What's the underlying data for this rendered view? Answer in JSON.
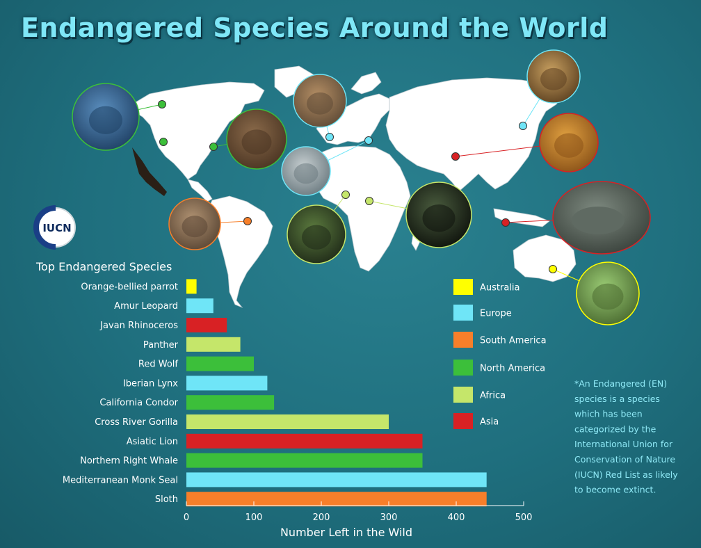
{
  "title": "Endangered Species Around the World",
  "logo_text": "IUCN",
  "chart_heading": "Top Endangered Species",
  "colors": {
    "Australia": "#ffff00",
    "Europe": "#6fe5f7",
    "South America": "#f77f2a",
    "North America": "#3cbf3a",
    "Africa": "#c5e66a",
    "Asia": "#d82124"
  },
  "legend": [
    "Australia",
    "Europe",
    "South America",
    "North America",
    "Africa",
    "Asia"
  ],
  "chart_data": {
    "type": "bar",
    "orientation": "horizontal",
    "categories": [
      "Orange-bellied parrot",
      "Amur Leopard",
      "Javan Rhinoceros",
      "Panther",
      "Red Wolf",
      "Iberian Lynx",
      "California Condor",
      "Cross River Gorilla",
      "Asiatic Lion",
      "Northern Right Whale",
      "Mediterranean Monk Seal",
      "Sloth"
    ],
    "values": [
      15,
      40,
      60,
      80,
      100,
      120,
      130,
      300,
      350,
      350,
      445,
      445
    ],
    "regions": [
      "Australia",
      "Europe",
      "Asia",
      "Africa",
      "North America",
      "Europe",
      "North America",
      "Africa",
      "Asia",
      "North America",
      "Europe",
      "South America"
    ],
    "xlabel": "Number Left in the Wild",
    "xlim": [
      0,
      500
    ],
    "xticks": [
      0,
      100,
      200,
      300,
      400,
      500
    ],
    "legend_position": "right"
  },
  "note_lines": [
    "*An Endangered (EN)",
    "species is a species",
    "which has been",
    "categorized by the",
    "International Union for",
    "Conservation of Nature",
    "(IUCN) Red List as likely",
    "to become extinct."
  ],
  "map_pins": [
    {
      "animal": "whale",
      "region": "North America"
    },
    {
      "animal": "condor",
      "region": "North America"
    },
    {
      "animal": "red-wolf",
      "region": "North America"
    },
    {
      "animal": "lynx",
      "region": "Europe"
    },
    {
      "animal": "monk-seal",
      "region": "Europe"
    },
    {
      "animal": "sloth",
      "region": "South America"
    },
    {
      "animal": "gorilla",
      "region": "Africa"
    },
    {
      "animal": "panther",
      "region": "Africa"
    },
    {
      "animal": "amur-leopard",
      "region": "Europe"
    },
    {
      "animal": "asiatic-lion",
      "region": "Asia"
    },
    {
      "animal": "javan-rhino",
      "region": "Asia"
    },
    {
      "animal": "parrot",
      "region": "Australia"
    }
  ]
}
